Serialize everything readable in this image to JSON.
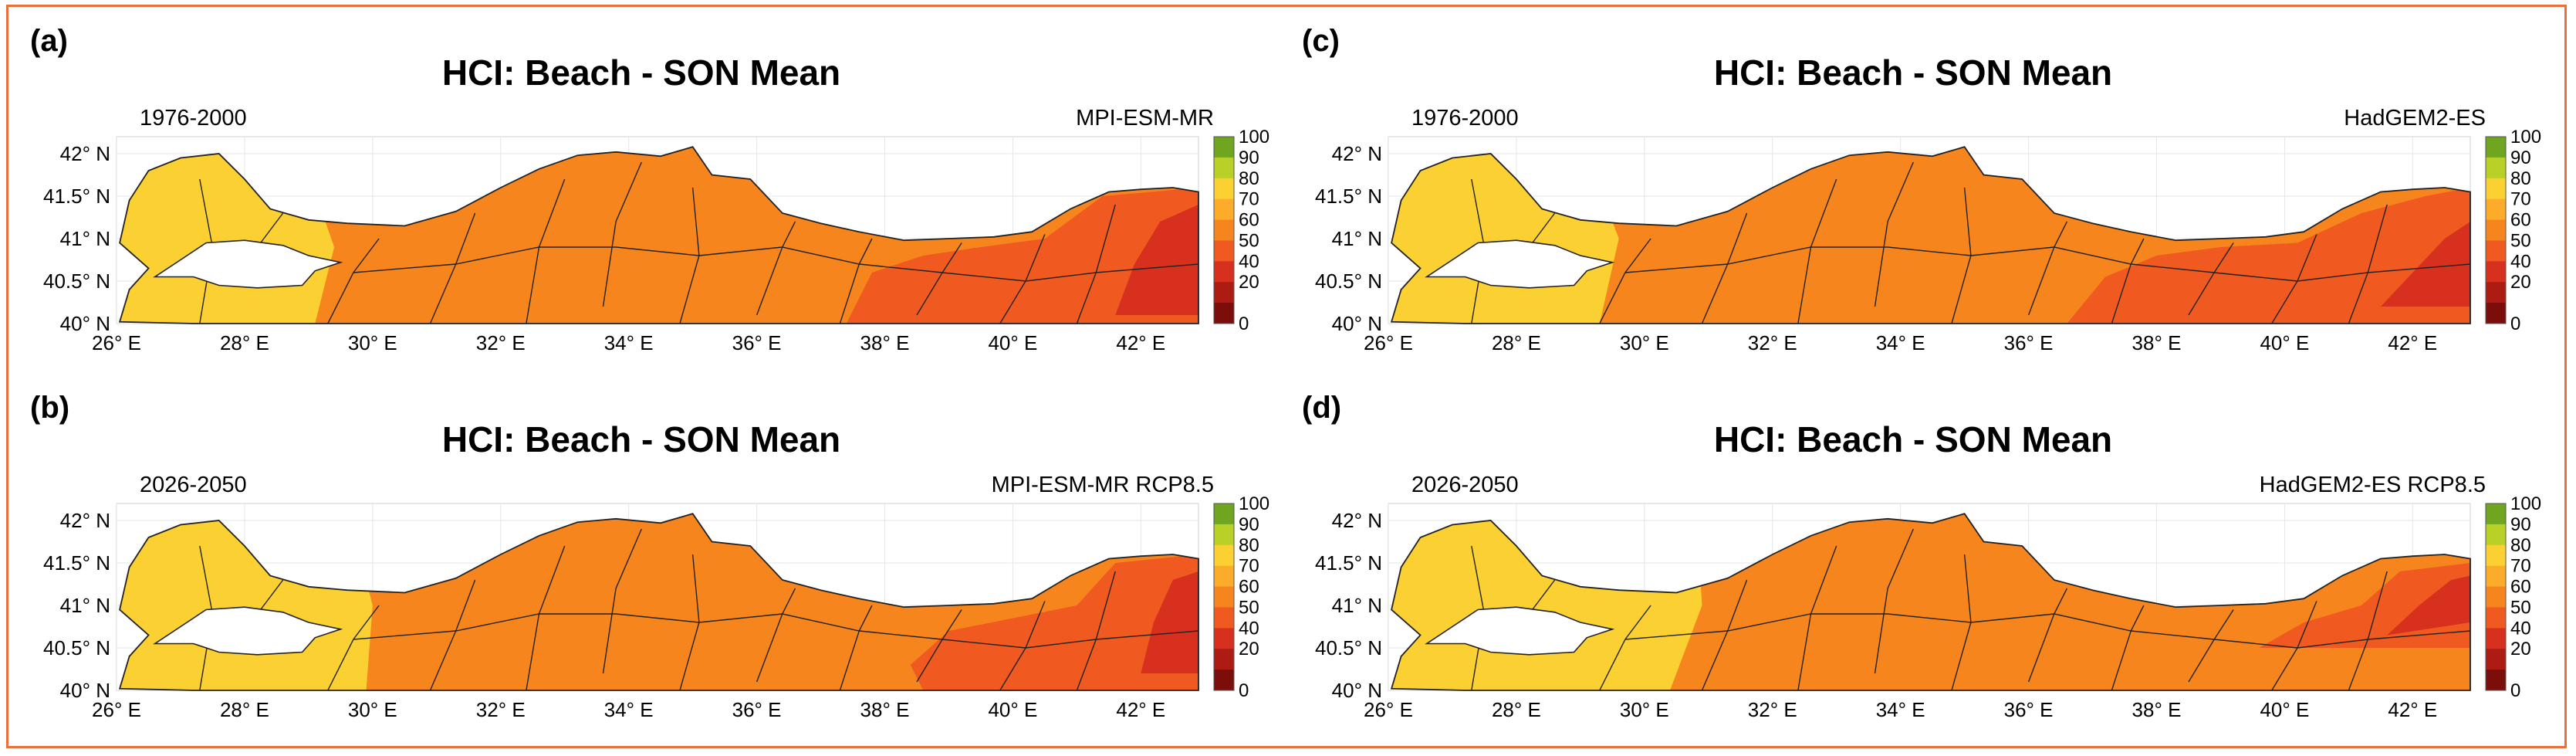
{
  "panels": [
    {
      "label": "(a)",
      "title": "HCI: Beach - SON Mean",
      "period": "1976-2000",
      "model": "MPI-ESM-MR"
    },
    {
      "label": "(b)",
      "title": "HCI: Beach - SON Mean",
      "period": "2026-2050",
      "model": "MPI-ESM-MR RCP8.5"
    },
    {
      "label": "(c)",
      "title": "HCI: Beach - SON Mean",
      "period": "1976-2000",
      "model": "HadGEM2-ES"
    },
    {
      "label": "(d)",
      "title": "HCI: Beach - SON Mean",
      "period": "2026-2050",
      "model": "HadGEM2-ES RCP8.5"
    }
  ],
  "lat_labels": [
    "42° N",
    "41.5° N",
    "41° N",
    "40.5° N",
    "40° N"
  ],
  "lon_labels": [
    "26° E",
    "28° E",
    "30° E",
    "32° E",
    "34° E",
    "36° E",
    "38° E",
    "40° E",
    "42° E"
  ],
  "colorbar": {
    "ticks": [
      "100",
      "90",
      "80",
      "70",
      "60",
      "50",
      "40",
      "20",
      "0"
    ],
    "colors": [
      "#6fa51f",
      "#b9d126",
      "#fbd032",
      "#fcab2b",
      "#f7851e",
      "#f05a20",
      "#d7301f",
      "#ac1c12",
      "#7b0e0a"
    ]
  },
  "colors": {
    "frame": "#e8703a",
    "sea": "#ffffff",
    "border_lines": "#222222",
    "grid": "#e6e6e6"
  }
}
